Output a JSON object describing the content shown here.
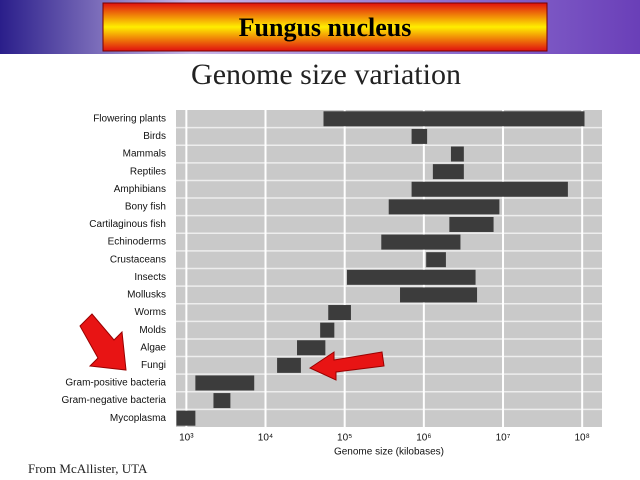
{
  "slide": {
    "banner": "Fungus nucleus",
    "title": "Genome size variation",
    "credit": "From McAllister, UTA"
  },
  "chart_data": {
    "type": "range-bar",
    "xlabel": "Genome size (kilobases)",
    "xscale": "log",
    "grid": true,
    "color": "#3c3c3c",
    "xlim": [
      740,
      178000000
    ],
    "xticks": [
      {
        "value": 1000,
        "label": "10³"
      },
      {
        "value": 10000,
        "label": "10⁴"
      },
      {
        "value": 100000,
        "label": "10⁵"
      },
      {
        "value": 1000000,
        "label": "10⁶"
      },
      {
        "value": 10000000,
        "label": "10⁷"
      },
      {
        "value": 100000000,
        "label": "10⁸"
      }
    ],
    "categories": [
      "Flowering plants",
      "Birds",
      "Mammals",
      "Reptiles",
      "Amphibians",
      "Bony fish",
      "Cartilaginous fish",
      "Echinoderms",
      "Crustaceans",
      "Insects",
      "Mollusks",
      "Worms",
      "Molds",
      "Algae",
      "Fungi",
      "Gram-positive bacteria",
      "Gram-negative bacteria",
      "Mycoplasma"
    ],
    "low": [
      54000,
      700000,
      2200000,
      1300000,
      700000,
      360000,
      2100000,
      290000,
      1070000,
      107000,
      500000,
      62000,
      49000,
      25000,
      14000,
      1300,
      2200,
      750
    ],
    "high": [
      107000000,
      1100000,
      3200000,
      3200000,
      66000000,
      9000000,
      7600000,
      2900000,
      1900000,
      4500000,
      4700000,
      120000,
      74000,
      57000,
      28000,
      7200,
      3600,
      1300
    ]
  }
}
